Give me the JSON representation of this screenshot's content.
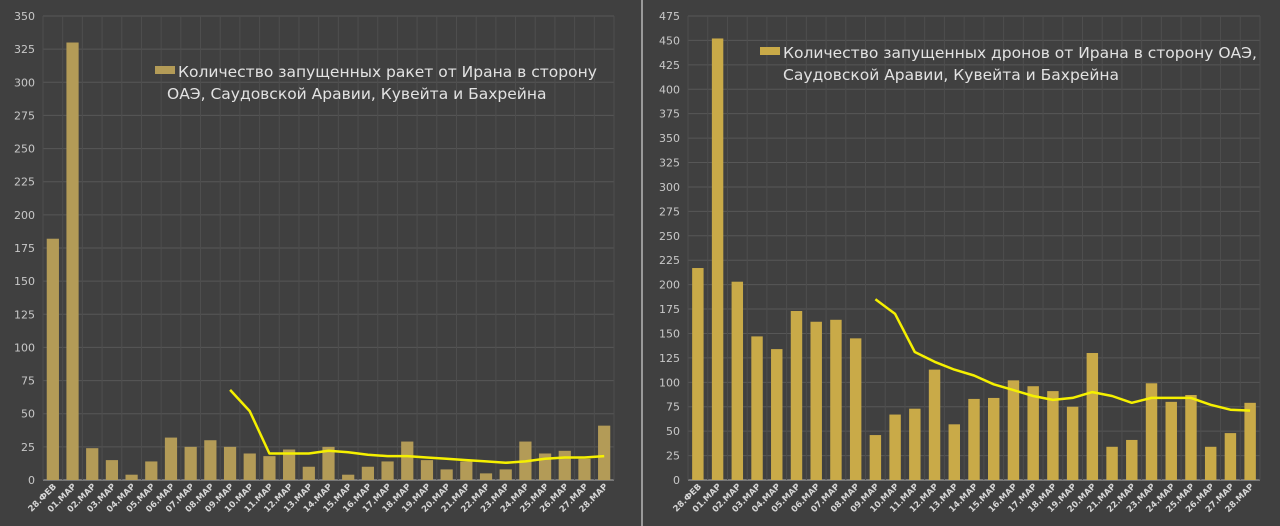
{
  "chart_data": [
    {
      "type": "bar",
      "title": "",
      "legend": "Количество запущенных ракет от Ирана в сторону ОАЭ, Саудовской Аравии, Кувейта и Бахрейна",
      "legend_lines": [
        "Количество запущенных ракет от Ирана в сторону",
        "ОАЭ, Саудовской Аравии, Кувейта и Бахрейна"
      ],
      "legend_placement": "top-center",
      "categories": [
        "28.ФЕВ",
        "01.МАР",
        "02.МАР",
        "03.МАР",
        "04.МАР",
        "05.МАР",
        "06.МАР",
        "07.МАР",
        "08.МАР",
        "09.МАР",
        "10.МАР",
        "11.МАР",
        "12.МАР",
        "13.МАР",
        "14.МАР",
        "15.МАР",
        "16.МАР",
        "17.МАР",
        "18.МАР",
        "19.МАР",
        "20.МАР",
        "21.МАР",
        "22.МАР",
        "23.МАР",
        "24.МАР",
        "25.МАР",
        "26.МАР",
        "27.МАР",
        "28.МАР"
      ],
      "series": [
        {
          "name": "Количество запущенных ракет",
          "type": "bar",
          "color": "#b39b57",
          "values": [
            182,
            330,
            24,
            15,
            4,
            14,
            32,
            25,
            30,
            25,
            20,
            18,
            23,
            10,
            25,
            4,
            10,
            14,
            29,
            15,
            8,
            14,
            5,
            8,
            29,
            20,
            22,
            16,
            41
          ]
        },
        {
          "name": "trend",
          "type": "line",
          "color": "#f5f000",
          "values": [
            null,
            null,
            null,
            null,
            null,
            null,
            null,
            null,
            null,
            68,
            52,
            20,
            20,
            20,
            22,
            21,
            19,
            18,
            18,
            17,
            16,
            15,
            14,
            13,
            14,
            16,
            17,
            17,
            18
          ]
        }
      ],
      "xlabel": "",
      "ylabel": "",
      "ylim": [
        0,
        350
      ],
      "yticks": [
        0,
        25,
        50,
        75,
        100,
        125,
        150,
        175,
        200,
        225,
        250,
        275,
        300,
        325,
        350
      ],
      "grid": true
    },
    {
      "type": "bar",
      "title": "",
      "legend": "Количество запущенных дронов от Ирана в сторону ОАЭ, Саудовской Аравии, Кувейта и Бахрейна",
      "legend_lines": [
        "Количество запущенных дронов от Ирана в сторону ОАЭ,",
        "Саудовской Аравии, Кувейта и Бахрейна"
      ],
      "legend_placement": "top-center",
      "categories": [
        "28.ФЕВ",
        "01.МАР",
        "02.МАР",
        "03.МАР",
        "04.МАР",
        "05.МАР",
        "06.МАР",
        "07.МАР",
        "08.МАР",
        "09.МАР",
        "10.МАР",
        "11.МАР",
        "12.МАР",
        "13.МАР",
        "14.МАР",
        "15.МАР",
        "16.МАР",
        "17.МАР",
        "18.МАР",
        "19.МАР",
        "20.МАР",
        "21.МАР",
        "22.МАР",
        "23.МАР",
        "24.МАР",
        "25.МАР",
        "26.МАР",
        "27.МАР",
        "28.МАР"
      ],
      "series": [
        {
          "name": "Количество запущенных дронов",
          "type": "bar",
          "color": "#c9aa48",
          "values": [
            217,
            452,
            203,
            147,
            134,
            173,
            162,
            164,
            145,
            46,
            67,
            73,
            113,
            57,
            83,
            84,
            102,
            96,
            91,
            75,
            130,
            34,
            41,
            99,
            80,
            87,
            34,
            48,
            79
          ]
        },
        {
          "name": "trend",
          "type": "line",
          "color": "#f5f000",
          "values": [
            null,
            null,
            null,
            null,
            null,
            null,
            null,
            null,
            null,
            185,
            170,
            131,
            121,
            113,
            107,
            98,
            92,
            86,
            82,
            84,
            90,
            86,
            79,
            84,
            84,
            84,
            77,
            72,
            71
          ]
        }
      ],
      "xlabel": "",
      "ylabel": "",
      "ylim": [
        0,
        475
      ],
      "yticks": [
        0,
        25,
        50,
        75,
        100,
        125,
        150,
        175,
        200,
        225,
        250,
        275,
        300,
        325,
        350,
        375,
        400,
        425,
        450,
        475
      ],
      "grid": true
    }
  ]
}
